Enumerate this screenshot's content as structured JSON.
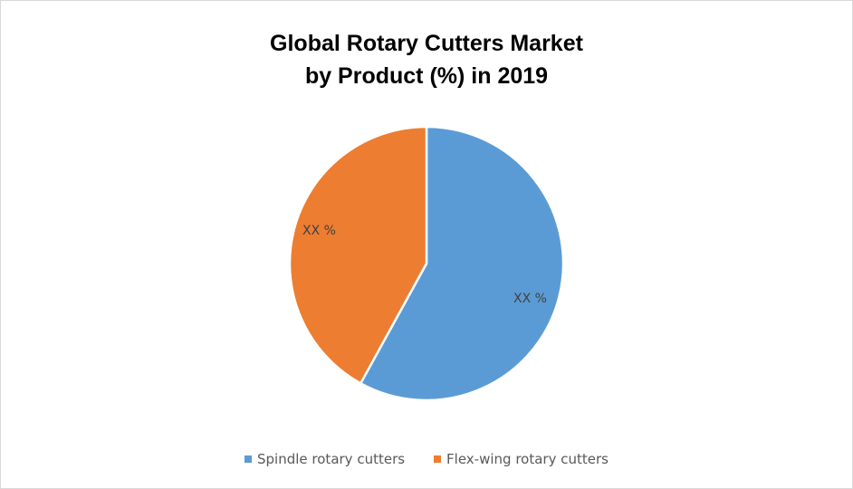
{
  "chart_data": {
    "type": "pie",
    "title": "Global Rotary Cutters Market by Product (%) in 2019",
    "title_lines": [
      "Global Rotary Cutters Market",
      "by Product (%) in 2019"
    ],
    "categories": [
      "Spindle rotary cutters",
      "Flex-wing rotary cutters"
    ],
    "values": [
      58,
      42
    ],
    "data_labels": [
      "XX %",
      "XX %"
    ],
    "colors": [
      "#5b9bd5",
      "#ed7d31"
    ],
    "legend_position": "bottom"
  },
  "legend": [
    {
      "label": "Spindle rotary cutters",
      "color": "#5b9bd5"
    },
    {
      "label": "Flex-wing rotary cutters",
      "color": "#ed7d31"
    }
  ]
}
